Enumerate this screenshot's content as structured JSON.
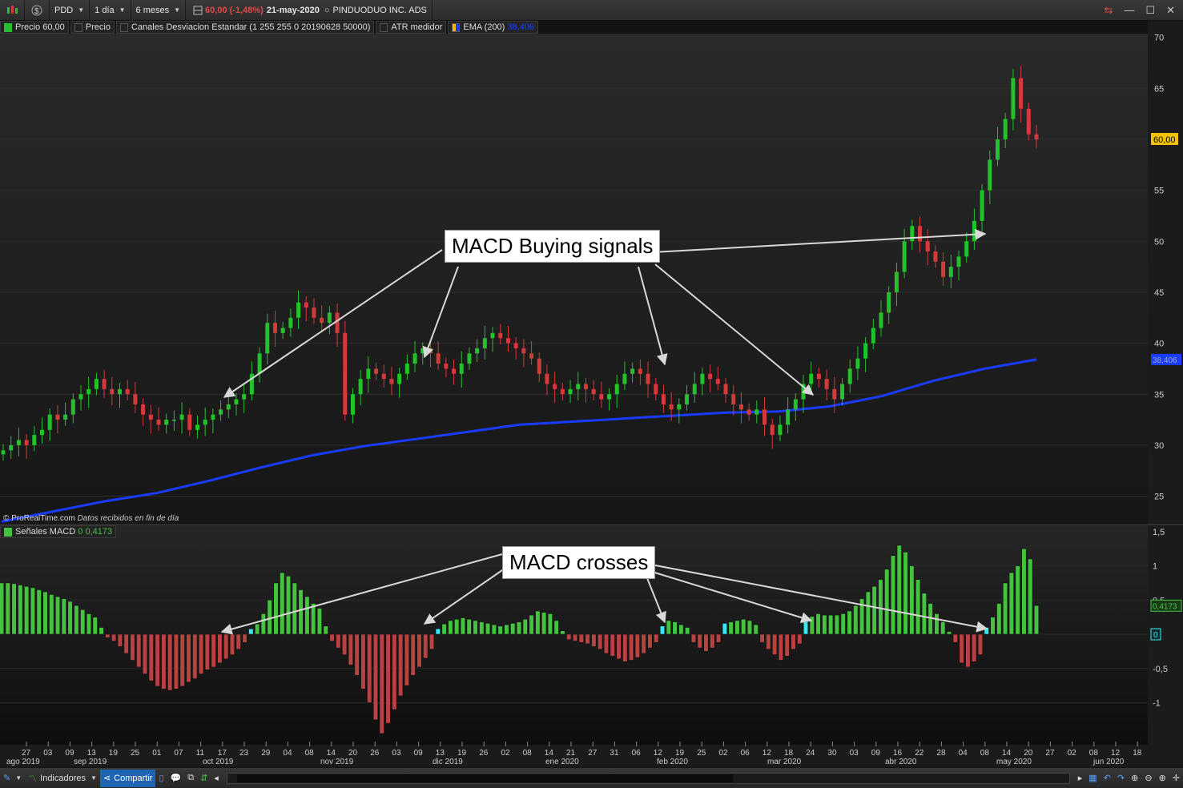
{
  "toolbar": {
    "symbol": "PDD",
    "interval": "1 día",
    "period": "6 meses",
    "price_change": "60,00 (-1,48%)",
    "date": "21-may-2020",
    "instrument": "PINDUODUO INC. ADS"
  },
  "legend": {
    "items": [
      "Precio 60,00",
      "Precio",
      "Canales Desviacion Estandar (1 255 255 0 20190628 50000)",
      "ATR medidor"
    ],
    "ema_label": "EMA (200)",
    "ema_value": "38,406"
  },
  "macd_legend": {
    "label": "Señales MACD",
    "zero": "0",
    "value": "0,4173"
  },
  "footer": {
    "brand": "© ProRealTime.com",
    "note": "Datos recibidos en fin de día"
  },
  "annotations": {
    "buy": "MACD Buying signals",
    "cross": "MACD crosses"
  },
  "price_axis": {
    "ticks": [
      "70",
      "65",
      "60",
      "55",
      "50",
      "45",
      "40",
      "35",
      "30",
      "25"
    ],
    "last_label": "60,00",
    "ema_label": "38,406"
  },
  "macd_axis": {
    "ticks": [
      "1,5",
      "1",
      "0,5",
      "0",
      "-0,5",
      "-1"
    ],
    "last_label": "0,4173",
    "zero_label": "0"
  },
  "x_axis": {
    "day_labels": [
      "27",
      "03",
      "09",
      "13",
      "19",
      "25",
      "01",
      "07",
      "11",
      "17",
      "23",
      "29",
      "04",
      "08",
      "14",
      "20",
      "26",
      "03",
      "09",
      "13",
      "19",
      "26",
      "02",
      "08",
      "14",
      "21",
      "27",
      "31",
      "06",
      "12",
      "19",
      "25",
      "02",
      "06",
      "12",
      "18",
      "24",
      "30",
      "03",
      "09",
      "16",
      "22",
      "28",
      "04",
      "08",
      "14",
      "20",
      "27",
      "02",
      "08",
      "12",
      "18"
    ],
    "month_labels": [
      "ago 2019",
      "sep 2019",
      "oct 2019",
      "nov 2019",
      "dic 2019",
      "ene 2020",
      "feb 2020",
      "mar 2020",
      "abr 2020",
      "may 2020",
      "jun 2020"
    ]
  },
  "bottombar": {
    "indicators_label": "Indicadores",
    "share_label": "Compartir"
  },
  "colors": {
    "up": "#22c22a",
    "down": "#d43a3a",
    "ema": "#1a3cff",
    "macd_pos": "#45c23f",
    "macd_neg": "#b84141",
    "cross": "#38e8f0"
  },
  "chart_data": [
    {
      "type": "candlestick",
      "title": "PINDUODUO INC. ADS (PDD) 1 día",
      "ylim": [
        22,
        71
      ],
      "series": [
        {
          "name": "EMA (200)",
          "values": [
            22.5,
            23.5,
            24.5,
            25.3,
            26.5,
            27.8,
            29,
            29.9,
            30.6,
            31.3,
            32,
            32.3,
            32.6,
            32.9,
            33.2,
            33.3,
            33.8,
            34.8,
            36.3,
            37.5,
            38.406
          ]
        },
        {
          "name": "Precio",
          "values": [
            29.5,
            30,
            30.5,
            30,
            31,
            31.5,
            33,
            32.5,
            33,
            34.5,
            35,
            35.5,
            36.5,
            35.5,
            35,
            35.5,
            35,
            34,
            33,
            32.5,
            32,
            32.5,
            32.5,
            33,
            31.5,
            32,
            32.5,
            33,
            33.5,
            34,
            34.5,
            35,
            37,
            39,
            42,
            41,
            41.5,
            42.5,
            44,
            43.5,
            42.5,
            42,
            43,
            41,
            33,
            35,
            36.5,
            37.5,
            37,
            36.5,
            36,
            37,
            38,
            39,
            39.5,
            39,
            38,
            37.5,
            37,
            38,
            39,
            39.5,
            40.5,
            41,
            40.5,
            40,
            39.5,
            39,
            38.5,
            37,
            36,
            35.5,
            35,
            35.5,
            36,
            35.5,
            35,
            34.5,
            35,
            36,
            37,
            37.5,
            37,
            36,
            35,
            34,
            33.5,
            34,
            35,
            36,
            37,
            36.5,
            36,
            35,
            34,
            33.5,
            33,
            33.5,
            32,
            31,
            32,
            33.5,
            34.5,
            36,
            37,
            36.5,
            35.5,
            34.5,
            36,
            37.5,
            38.5,
            40,
            41.5,
            43,
            45,
            47,
            50,
            51.5,
            50,
            49,
            48,
            46.5,
            47.5,
            48.5,
            50,
            52,
            55,
            58,
            60,
            62,
            66,
            63,
            60.5,
            60
          ]
        }
      ]
    },
    {
      "type": "bar",
      "title": "Señales MACD",
      "ylim": [
        -1.5,
        1.6
      ],
      "values": [
        0.75,
        0.75,
        0.74,
        0.72,
        0.7,
        0.68,
        0.65,
        0.62,
        0.58,
        0.55,
        0.52,
        0.48,
        0.42,
        0.36,
        0.3,
        0.25,
        0.1,
        -0.05,
        -0.1,
        -0.18,
        -0.28,
        -0.38,
        -0.48,
        -0.58,
        -0.68,
        -0.76,
        -0.8,
        -0.82,
        -0.8,
        -0.76,
        -0.7,
        -0.65,
        -0.58,
        -0.52,
        -0.48,
        -0.42,
        -0.36,
        -0.3,
        -0.22,
        -0.12,
        0.08,
        0.15,
        0.3,
        0.5,
        0.75,
        0.9,
        0.85,
        0.75,
        0.65,
        0.55,
        0.45,
        0.38,
        0.12,
        -0.1,
        -0.2,
        -0.3,
        -0.45,
        -0.6,
        -0.8,
        -1.0,
        -1.25,
        -1.45,
        -1.3,
        -1.1,
        -0.9,
        -0.75,
        -0.6,
        -0.48,
        -0.35,
        -0.22,
        0.08,
        0.15,
        0.2,
        0.22,
        0.24,
        0.22,
        0.2,
        0.18,
        0.16,
        0.14,
        0.12,
        0.14,
        0.16,
        0.18,
        0.22,
        0.28,
        0.34,
        0.32,
        0.3,
        0.2,
        0.05,
        -0.08,
        -0.1,
        -0.12,
        -0.14,
        -0.18,
        -0.22,
        -0.28,
        -0.32,
        -0.36,
        -0.4,
        -0.38,
        -0.34,
        -0.28,
        -0.2,
        -0.12,
        0.12,
        0.2,
        0.18,
        0.14,
        0.1,
        -0.12,
        -0.2,
        -0.25,
        -0.2,
        -0.12,
        0.16,
        0.18,
        0.2,
        0.22,
        0.2,
        0.14,
        -0.12,
        -0.22,
        -0.3,
        -0.38,
        -0.32,
        -0.22,
        -0.14,
        0.18,
        0.26,
        0.3,
        0.28,
        0.28,
        0.28,
        0.3,
        0.34,
        0.42,
        0.52,
        0.62,
        0.7,
        0.8,
        0.95,
        1.15,
        1.3,
        1.2,
        1.0,
        0.8,
        0.6,
        0.45,
        0.3,
        0.18,
        0.04,
        -0.12,
        -0.42,
        -0.48,
        -0.4,
        -0.3,
        0.1,
        0.25,
        0.45,
        0.75,
        0.9,
        1.0,
        1.25,
        1.1,
        0.42
      ]
    }
  ]
}
